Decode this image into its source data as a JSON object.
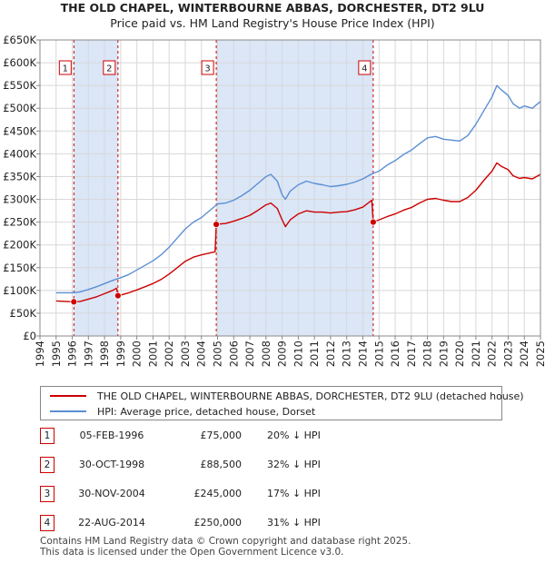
{
  "title_line1": "THE OLD CHAPEL, WINTERBOURNE ABBAS, DORCHESTER, DT2 9LU",
  "title_line2": "Price paid vs. HM Land Registry's House Price Index (HPI)",
  "colors": {
    "property": "#cc0000",
    "hpi": "#5b8fd4",
    "shade": "#dbe6f7",
    "marker_line": "#cc0000",
    "grid": "#d8d8d8"
  },
  "legend": {
    "property": "THE OLD CHAPEL, WINTERBOURNE ABBAS, DORCHESTER, DT2 9LU (detached house)",
    "hpi": "HPI: Average price, detached house, Dorset"
  },
  "transactions": [
    {
      "num": "1",
      "date": "05-FEB-1996",
      "price": "£75,000",
      "hpi_diff": "20% ↓ HPI"
    },
    {
      "num": "2",
      "date": "30-OCT-1998",
      "price": "£88,500",
      "hpi_diff": "32% ↓ HPI"
    },
    {
      "num": "3",
      "date": "30-NOV-2004",
      "price": "£245,000",
      "hpi_diff": "17% ↓ HPI"
    },
    {
      "num": "4",
      "date": "22-AUG-2014",
      "price": "£250,000",
      "hpi_diff": "31% ↓ HPI"
    }
  ],
  "footer": {
    "line1": "Contains HM Land Registry data © Crown copyright and database right 2025.",
    "line2": "This data is licensed under the Open Government Licence v3.0."
  },
  "chart_data": {
    "type": "line",
    "xlim": [
      1994,
      2025
    ],
    "ylim": [
      0,
      650000
    ],
    "xticks": [
      1994,
      1995,
      1996,
      1997,
      1998,
      1999,
      2000,
      2001,
      2002,
      2003,
      2004,
      2005,
      2006,
      2007,
      2008,
      2009,
      2010,
      2011,
      2012,
      2013,
      2014,
      2015,
      2016,
      2017,
      2018,
      2019,
      2020,
      2021,
      2022,
      2023,
      2024,
      2025
    ],
    "yticks": [
      0,
      50000,
      100000,
      150000,
      200000,
      250000,
      300000,
      350000,
      400000,
      450000,
      500000,
      550000,
      600000,
      650000
    ],
    "ytick_labels": [
      "£0",
      "£50K",
      "£100K",
      "£150K",
      "£200K",
      "£250K",
      "£300K",
      "£350K",
      "£400K",
      "£450K",
      "£500K",
      "£550K",
      "£600K",
      "£650K"
    ],
    "shaded_spans": [
      [
        1996.1,
        1998.83
      ],
      [
        2004.92,
        2014.64
      ]
    ],
    "sale_markers": [
      {
        "label": "1",
        "x": 1996.1,
        "y": 75000
      },
      {
        "label": "2",
        "x": 1998.83,
        "y": 88500
      },
      {
        "label": "3",
        "x": 2004.92,
        "y": 245000
      },
      {
        "label": "4",
        "x": 2014.64,
        "y": 250000
      }
    ],
    "series": [
      {
        "name": "hpi",
        "points": [
          [
            1995.0,
            95000
          ],
          [
            1996.0,
            95000
          ],
          [
            1996.5,
            97000
          ],
          [
            1997.0,
            102000
          ],
          [
            1997.5,
            108000
          ],
          [
            1998.0,
            115000
          ],
          [
            1998.5,
            122000
          ],
          [
            1999.0,
            128000
          ],
          [
            1999.5,
            135000
          ],
          [
            2000.0,
            145000
          ],
          [
            2000.5,
            155000
          ],
          [
            2001.0,
            165000
          ],
          [
            2001.5,
            178000
          ],
          [
            2002.0,
            195000
          ],
          [
            2002.5,
            215000
          ],
          [
            2003.0,
            235000
          ],
          [
            2003.5,
            250000
          ],
          [
            2004.0,
            260000
          ],
          [
            2004.5,
            275000
          ],
          [
            2005.0,
            290000
          ],
          [
            2005.5,
            292000
          ],
          [
            2006.0,
            298000
          ],
          [
            2006.5,
            308000
          ],
          [
            2007.0,
            320000
          ],
          [
            2007.5,
            335000
          ],
          [
            2008.0,
            350000
          ],
          [
            2008.3,
            355000
          ],
          [
            2008.7,
            340000
          ],
          [
            2009.0,
            310000
          ],
          [
            2009.2,
            300000
          ],
          [
            2009.5,
            318000
          ],
          [
            2010.0,
            332000
          ],
          [
            2010.5,
            340000
          ],
          [
            2011.0,
            335000
          ],
          [
            2011.5,
            332000
          ],
          [
            2012.0,
            328000
          ],
          [
            2012.5,
            330000
          ],
          [
            2013.0,
            333000
          ],
          [
            2013.5,
            338000
          ],
          [
            2014.0,
            345000
          ],
          [
            2014.5,
            355000
          ],
          [
            2015.0,
            362000
          ],
          [
            2015.5,
            375000
          ],
          [
            2016.0,
            385000
          ],
          [
            2016.5,
            398000
          ],
          [
            2017.0,
            408000
          ],
          [
            2017.5,
            422000
          ],
          [
            2018.0,
            435000
          ],
          [
            2018.5,
            438000
          ],
          [
            2019.0,
            432000
          ],
          [
            2019.5,
            430000
          ],
          [
            2020.0,
            428000
          ],
          [
            2020.5,
            440000
          ],
          [
            2021.0,
            465000
          ],
          [
            2021.5,
            495000
          ],
          [
            2022.0,
            525000
          ],
          [
            2022.3,
            550000
          ],
          [
            2022.6,
            540000
          ],
          [
            2023.0,
            528000
          ],
          [
            2023.3,
            510000
          ],
          [
            2023.7,
            500000
          ],
          [
            2024.0,
            505000
          ],
          [
            2024.5,
            500000
          ],
          [
            2025.0,
            515000
          ]
        ]
      },
      {
        "name": "property",
        "points": [
          [
            1995.0,
            77000
          ],
          [
            1996.1,
            75000
          ],
          [
            1996.5,
            76000
          ],
          [
            1997.0,
            81000
          ],
          [
            1997.5,
            86000
          ],
          [
            1998.0,
            93000
          ],
          [
            1998.5,
            100000
          ],
          [
            1998.75,
            105000
          ],
          [
            1998.83,
            88500
          ],
          [
            1999.0,
            90000
          ],
          [
            1999.5,
            95000
          ],
          [
            2000.0,
            101000
          ],
          [
            2000.5,
            108000
          ],
          [
            2001.0,
            115000
          ],
          [
            2001.5,
            124000
          ],
          [
            2002.0,
            136000
          ],
          [
            2002.5,
            150000
          ],
          [
            2003.0,
            164000
          ],
          [
            2003.5,
            173000
          ],
          [
            2004.0,
            178000
          ],
          [
            2004.5,
            182000
          ],
          [
            2004.85,
            185000
          ],
          [
            2004.92,
            245000
          ],
          [
            2005.5,
            247000
          ],
          [
            2006.0,
            252000
          ],
          [
            2006.5,
            258000
          ],
          [
            2007.0,
            265000
          ],
          [
            2007.5,
            276000
          ],
          [
            2008.0,
            288000
          ],
          [
            2008.3,
            292000
          ],
          [
            2008.7,
            280000
          ],
          [
            2009.0,
            255000
          ],
          [
            2009.2,
            240000
          ],
          [
            2009.5,
            255000
          ],
          [
            2010.0,
            268000
          ],
          [
            2010.5,
            275000
          ],
          [
            2011.0,
            272000
          ],
          [
            2011.5,
            272000
          ],
          [
            2012.0,
            270000
          ],
          [
            2012.5,
            272000
          ],
          [
            2013.0,
            273000
          ],
          [
            2013.5,
            277000
          ],
          [
            2014.0,
            283000
          ],
          [
            2014.55,
            298000
          ],
          [
            2014.64,
            250000
          ],
          [
            2015.0,
            255000
          ],
          [
            2015.5,
            262000
          ],
          [
            2016.0,
            268000
          ],
          [
            2016.5,
            276000
          ],
          [
            2017.0,
            282000
          ],
          [
            2017.5,
            292000
          ],
          [
            2018.0,
            300000
          ],
          [
            2018.5,
            302000
          ],
          [
            2019.0,
            298000
          ],
          [
            2019.5,
            295000
          ],
          [
            2020.0,
            295000
          ],
          [
            2020.5,
            304000
          ],
          [
            2021.0,
            320000
          ],
          [
            2021.5,
            342000
          ],
          [
            2022.0,
            362000
          ],
          [
            2022.3,
            380000
          ],
          [
            2022.6,
            372000
          ],
          [
            2023.0,
            365000
          ],
          [
            2023.3,
            352000
          ],
          [
            2023.7,
            346000
          ],
          [
            2024.0,
            348000
          ],
          [
            2024.5,
            345000
          ],
          [
            2025.0,
            355000
          ]
        ]
      }
    ]
  }
}
